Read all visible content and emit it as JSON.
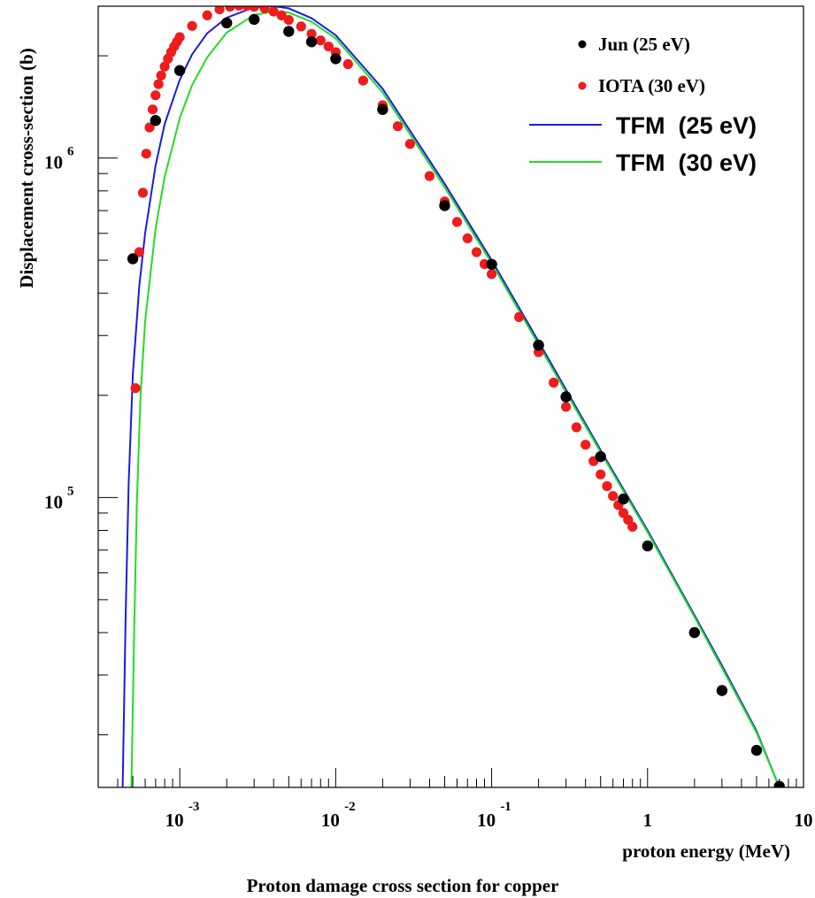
{
  "chart_data": {
    "type": "scatter",
    "title": "Proton damage cross section for copper",
    "xlabel": "proton energy (MeV)",
    "ylabel": "Displacement cross-section (b)",
    "x_scale": "log",
    "y_scale": "log",
    "xlim": [
      0.0003,
      10
    ],
    "ylim": [
      14000,
      2800000
    ],
    "x_ticks": [
      {
        "base": "10",
        "exp": "-3"
      },
      {
        "base": "10",
        "exp": "-2"
      },
      {
        "base": "10",
        "exp": "-1"
      },
      {
        "base": "1",
        "exp": ""
      },
      {
        "base": "10",
        "exp": ""
      }
    ],
    "y_ticks": [
      {
        "base": "10",
        "exp": "5"
      },
      {
        "base": "10",
        "exp": "6"
      }
    ],
    "grid": false,
    "legend_position": "top-right",
    "series": [
      {
        "name": "Jun (25 eV)",
        "kind": "points",
        "color": "#000000",
        "x": [
          0.0005,
          0.0007,
          0.001,
          0.002,
          0.003,
          0.005,
          0.007,
          0.01,
          0.02,
          0.05,
          0.1,
          0.2,
          0.3,
          0.5,
          0.7,
          1,
          2,
          3,
          5,
          7
        ],
        "y": [
          505000,
          1290000,
          1810000,
          2500000,
          2560000,
          2360000,
          2200000,
          1960000,
          1390000,
          724000,
          486000,
          281000,
          198000,
          132000,
          99000,
          72000,
          40000,
          27000,
          18000,
          14100
        ]
      },
      {
        "name": "IOTA (30 eV)",
        "kind": "points",
        "color": "#ee1c1c",
        "x": [
          0.00052,
          0.00055,
          0.00058,
          0.00061,
          0.00064,
          0.00067,
          0.0007,
          0.00073,
          0.00076,
          0.0008,
          0.00084,
          0.00088,
          0.00092,
          0.00096,
          0.001,
          0.0012,
          0.0015,
          0.0018,
          0.0021,
          0.0024,
          0.0027,
          0.003,
          0.0035,
          0.004,
          0.0045,
          0.005,
          0.006,
          0.007,
          0.008,
          0.009,
          0.01,
          0.012,
          0.015,
          0.02,
          0.025,
          0.03,
          0.04,
          0.05,
          0.06,
          0.07,
          0.08,
          0.09,
          0.1,
          0.15,
          0.2,
          0.25,
          0.3,
          0.35,
          0.4,
          0.45,
          0.5,
          0.55,
          0.6,
          0.65,
          0.7,
          0.75,
          0.8
        ],
        "y": [
          210000,
          528000,
          790000,
          1030000,
          1230000,
          1390000,
          1530000,
          1650000,
          1750000,
          1860000,
          1960000,
          2050000,
          2130000,
          2200000,
          2270000,
          2450000,
          2630000,
          2740000,
          2790000,
          2810000,
          2810000,
          2790000,
          2760000,
          2700000,
          2630000,
          2550000,
          2440000,
          2320000,
          2220000,
          2130000,
          2050000,
          1890000,
          1690000,
          1430000,
          1240000,
          1100000,
          885000,
          745000,
          648000,
          580000,
          528000,
          487000,
          455000,
          340000,
          268000,
          218000,
          185000,
          161000,
          143000,
          128000,
          117000,
          108000,
          101000,
          95000,
          90000,
          86000,
          82000
        ]
      },
      {
        "name": "TFM  (25 eV)",
        "kind": "line",
        "color": "#1a1ae6",
        "x": [
          0.00043,
          0.00045,
          0.00047,
          0.0005,
          0.00055,
          0.0006,
          0.0007,
          0.0008,
          0.001,
          0.0012,
          0.0015,
          0.002,
          0.003,
          0.004,
          0.005,
          0.007,
          0.01,
          0.02,
          0.05,
          0.1,
          0.2,
          0.5,
          1,
          2,
          3,
          5,
          7
        ],
        "y": [
          14000,
          45000,
          110000,
          230000,
          420000,
          600000,
          950000,
          1260000,
          1700000,
          2020000,
          2330000,
          2590000,
          2780000,
          2800000,
          2760000,
          2580000,
          2300000,
          1600000,
          840000,
          500000,
          288000,
          138000,
          80000,
          45000,
          32000,
          20500,
          14000
        ]
      },
      {
        "name": "TFM  (30 eV)",
        "kind": "line",
        "color": "#22dd22",
        "x": [
          0.00049,
          0.00051,
          0.00053,
          0.00056,
          0.0006,
          0.0007,
          0.0008,
          0.001,
          0.0012,
          0.0015,
          0.002,
          0.003,
          0.004,
          0.005,
          0.007,
          0.01,
          0.02,
          0.05,
          0.1,
          0.2,
          0.5,
          1,
          2,
          3,
          5,
          7
        ],
        "y": [
          14000,
          40000,
          95000,
          200000,
          330000,
          620000,
          880000,
          1310000,
          1640000,
          1980000,
          2340000,
          2640000,
          2700000,
          2680000,
          2520000,
          2250000,
          1560000,
          820000,
          490000,
          282000,
          136000,
          79000,
          44500,
          31500,
          20300,
          14000
        ]
      }
    ]
  }
}
